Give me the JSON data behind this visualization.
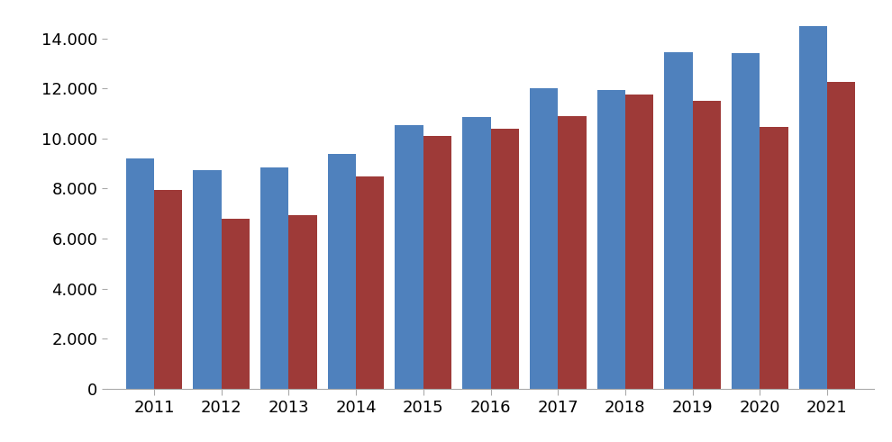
{
  "years": [
    2011,
    2012,
    2013,
    2014,
    2015,
    2016,
    2017,
    2018,
    2019,
    2020,
    2021
  ],
  "blue_values": [
    9200,
    8750,
    8850,
    9400,
    10550,
    10850,
    12000,
    11950,
    13450,
    13400,
    14500
  ],
  "red_values": [
    7950,
    6800,
    6950,
    8500,
    10100,
    10400,
    10900,
    11750,
    11500,
    10450,
    12250
  ],
  "blue_color": "#4F81BD",
  "red_color": "#9E3A38",
  "ylim": [
    0,
    15000
  ],
  "yticks": [
    0,
    2000,
    4000,
    6000,
    8000,
    10000,
    12000,
    14000
  ],
  "background_color": "#FFFFFF",
  "bar_width": 0.42,
  "figure_width": 9.9,
  "figure_height": 4.91
}
